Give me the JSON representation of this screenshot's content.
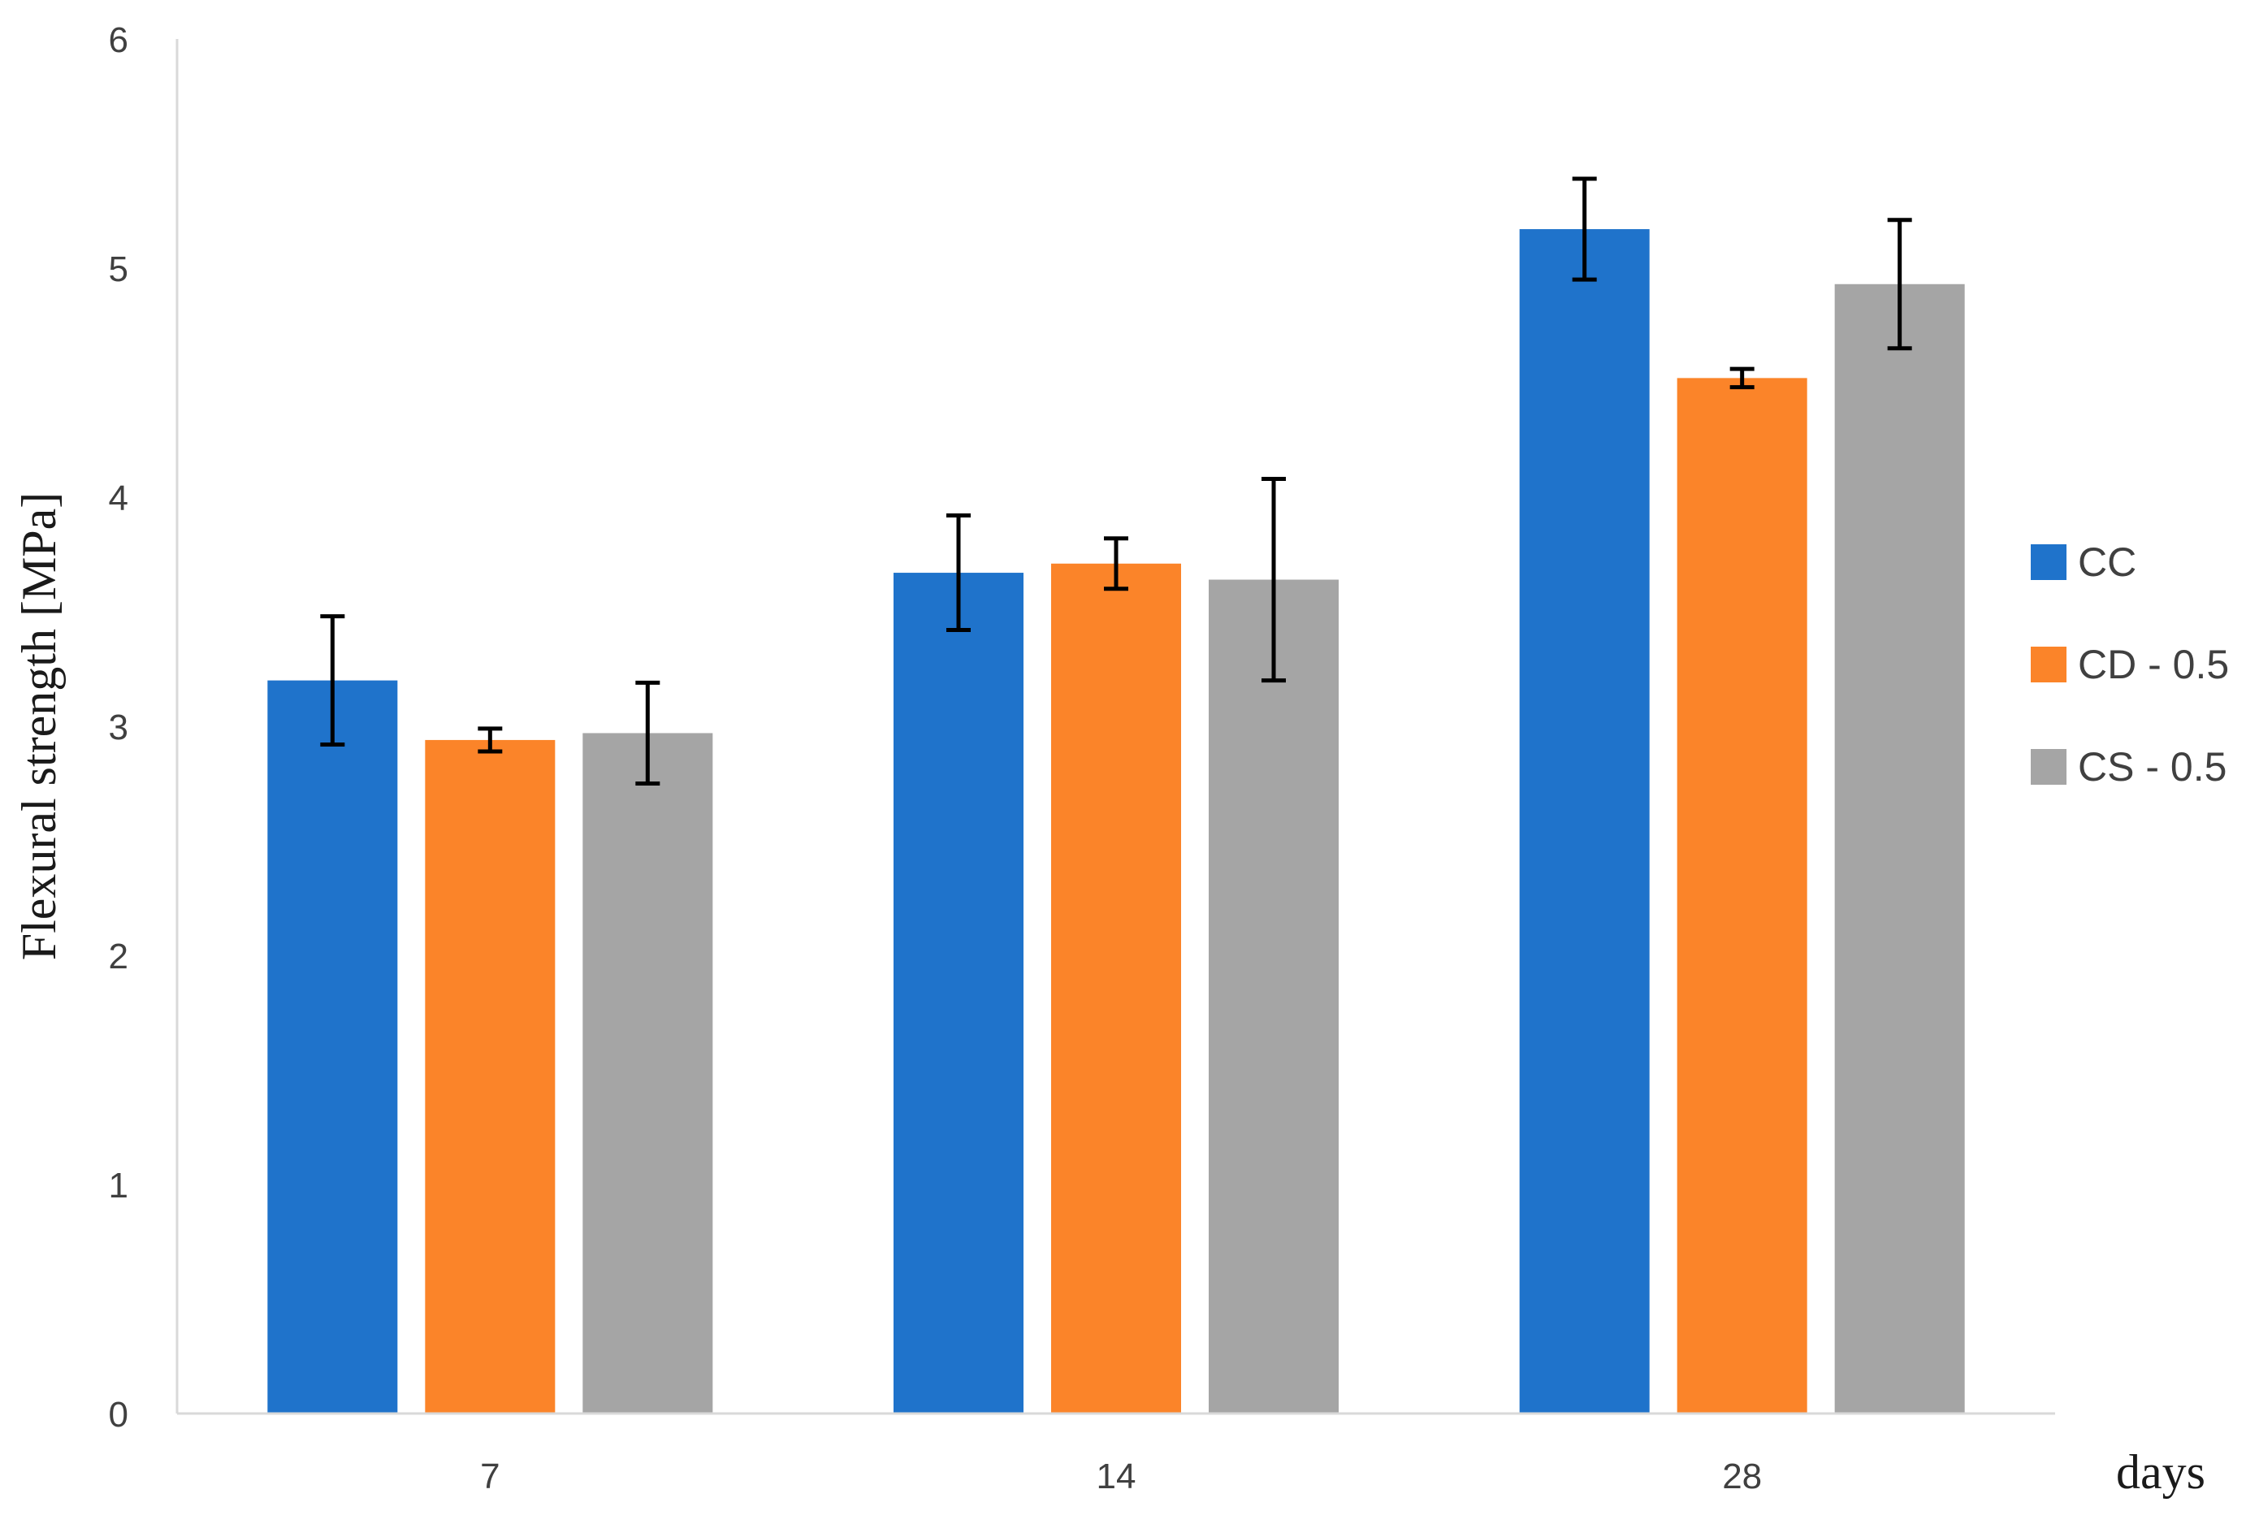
{
  "chart_data": {
    "type": "bar",
    "title": "",
    "xlabel": "days",
    "ylabel": "Flexural strength [MPa]",
    "ylim": [
      0,
      6
    ],
    "yticks": [
      "0",
      "1",
      "2",
      "3",
      "4",
      "5",
      "6"
    ],
    "grid": false,
    "legend_position": "right",
    "categories": [
      "7",
      "14",
      "28"
    ],
    "series": [
      {
        "name": "CC",
        "color": "#1F73CB",
        "values": [
          3.2,
          3.67,
          5.17
        ],
        "errors": [
          0.28,
          0.25,
          0.22
        ]
      },
      {
        "name": "CD - 0.5",
        "color": "#FB8429",
        "values": [
          2.94,
          3.71,
          4.52
        ],
        "errors": [
          0.05,
          0.11,
          0.04
        ]
      },
      {
        "name": "CS - 0.5",
        "color": "#A5A5A5",
        "values": [
          2.97,
          3.64,
          4.93
        ],
        "errors": [
          0.22,
          0.44,
          0.28
        ]
      }
    ]
  }
}
